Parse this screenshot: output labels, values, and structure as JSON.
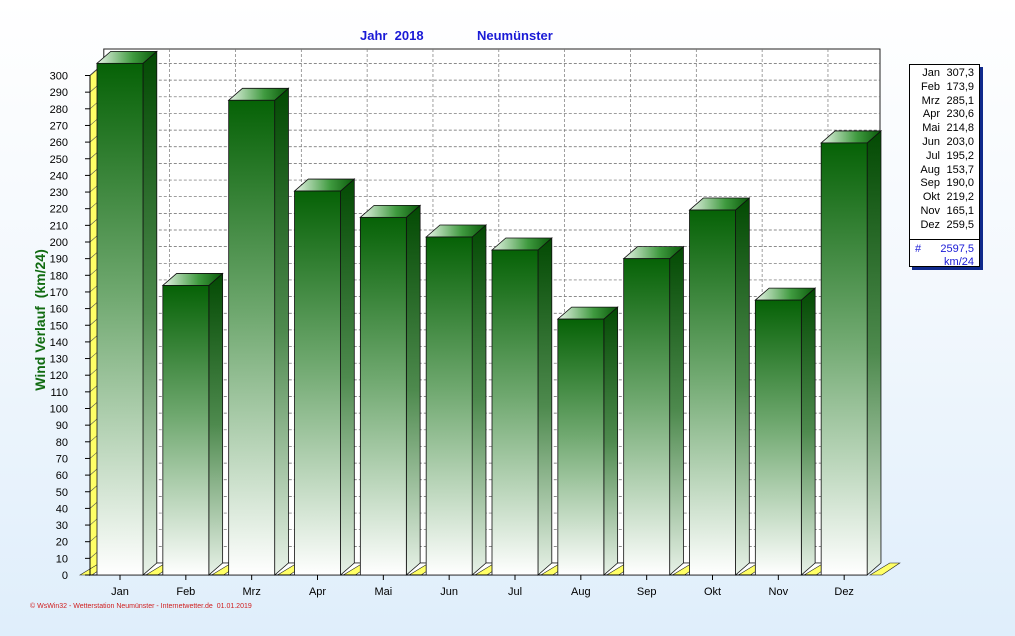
{
  "chart_data": {
    "type": "bar",
    "title_left": "Jahr  2018",
    "title_right": "Neumünster",
    "ylabel": "Wind Verlauf  (km/24)",
    "ylim": [
      0,
      300
    ],
    "ytick_step": 10,
    "categories": [
      "Jan",
      "Feb",
      "Mrz",
      "Apr",
      "Mai",
      "Jun",
      "Jul",
      "Aug",
      "Sep",
      "Okt",
      "Nov",
      "Dez"
    ],
    "values": [
      307.3,
      173.9,
      285.1,
      230.6,
      214.8,
      203.0,
      195.2,
      153.7,
      190.0,
      219.2,
      165.1,
      259.5
    ],
    "grid": true,
    "bar_color": "#0a6e0a",
    "legend": {
      "rows": [
        {
          "month": "Jan",
          "value": "307,3"
        },
        {
          "month": "Feb",
          "value": "173,9"
        },
        {
          "month": "Mrz",
          "value": "285,1"
        },
        {
          "month": "Apr",
          "value": "230,6"
        },
        {
          "month": "Mai",
          "value": "214,8"
        },
        {
          "month": "Jun",
          "value": "203,0"
        },
        {
          "month": "Jul",
          "value": "195,2"
        },
        {
          "month": "Aug",
          "value": "153,7"
        },
        {
          "month": "Sep",
          "value": "190,0"
        },
        {
          "month": "Okt",
          "value": "219,2"
        },
        {
          "month": "Nov",
          "value": "165,1"
        },
        {
          "month": "Dez",
          "value": "259,5"
        }
      ],
      "hash": "#",
      "total": "2597,5",
      "unit": "km/24"
    }
  },
  "footer": "© WsWin32 - Wetterstation Neumünster - Internetwetter.de  01.01.2019"
}
